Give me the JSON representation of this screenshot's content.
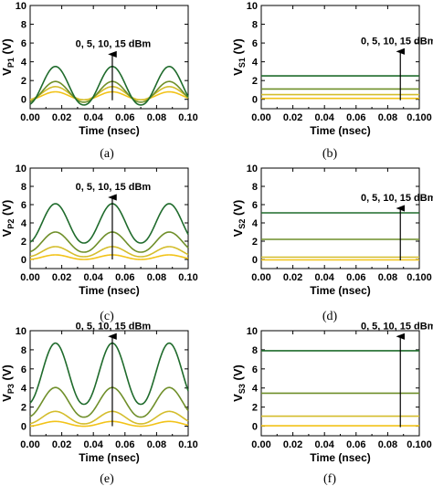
{
  "colors": [
    "#1f6b2c",
    "#6f8f2a",
    "#d4bd2c",
    "#f2c318"
  ],
  "chart_data": [
    {
      "id": "a",
      "type": "line",
      "caption": "(a)",
      "xlabel": "Time (nsec)",
      "ylabel_main": "V",
      "ylabel_sub": "P1",
      "ylabel_unit": " (V)",
      "xlim": [
        0,
        0.1
      ],
      "ylim": [
        -1,
        10
      ],
      "xticks": [
        "0.00",
        "0.02",
        "0.04",
        "0.06",
        "0.08",
        "0.10"
      ],
      "yticks": [
        "0",
        "2",
        "4",
        "6",
        "8",
        "10"
      ],
      "annotation": "0, 5, 10, 15 dBm",
      "arrow_x": 0.052,
      "arrow_y": [
        -0.1,
        4.8
      ],
      "period": 0.036,
      "peak_time": 0.016,
      "series": [
        {
          "base": -0.05,
          "amplitude": 0.85
        },
        {
          "base": -0.05,
          "amplitude": 1.4
        },
        {
          "base": -0.3,
          "amplitude": 2.2
        },
        {
          "base": -0.6,
          "amplitude": 4.1
        }
      ]
    },
    {
      "id": "b",
      "type": "line",
      "caption": "(b)",
      "xlabel": "Time (nsec)",
      "ylabel_main": "V",
      "ylabel_sub": "S1",
      "ylabel_unit": " (V)",
      "xlim": [
        0,
        0.1
      ],
      "ylim": [
        -1,
        10
      ],
      "xticks": [
        "0.00",
        "0.02",
        "0.04",
        "0.06",
        "0.08",
        "0.100"
      ],
      "yticks": [
        "0",
        "2",
        "4",
        "6",
        "8",
        "10"
      ],
      "annotation": "0, 5, 10, 15 dBm",
      "arrow_x": 0.088,
      "arrow_y": [
        -0.1,
        5.1
      ],
      "series": [
        {
          "level": 0.1
        },
        {
          "level": 0.5
        },
        {
          "level": 1.1
        },
        {
          "level": 2.5
        }
      ]
    },
    {
      "id": "c",
      "type": "line",
      "caption": "(c)",
      "xlabel": "Time (nsec)",
      "ylabel_main": "V",
      "ylabel_sub": "P2",
      "ylabel_unit": " (V)",
      "xlim": [
        0,
        0.1
      ],
      "ylim": [
        -1,
        10
      ],
      "xticks": [
        "0.00",
        "0.02",
        "0.04",
        "0.06",
        "0.08",
        "0.10"
      ],
      "yticks": [
        "0",
        "2",
        "4",
        "6",
        "8",
        "10"
      ],
      "annotation": "0, 5, 10, 15 dBm",
      "arrow_x": 0.052,
      "arrow_y": [
        0,
        6.8
      ],
      "period": 0.036,
      "peak_time": 0.016,
      "series": [
        {
          "base": 0.0,
          "amplitude": 0.5
        },
        {
          "base": 0.3,
          "amplitude": 1.1
        },
        {
          "base": 0.8,
          "amplitude": 2.2
        },
        {
          "base": 1.8,
          "amplitude": 4.3
        }
      ]
    },
    {
      "id": "d",
      "type": "line",
      "caption": "(d)",
      "xlabel": "Time (nsec)",
      "ylabel_main": "V",
      "ylabel_sub": "S2",
      "ylabel_unit": " (V)",
      "xlim": [
        0,
        0.1
      ],
      "ylim": [
        -1,
        10
      ],
      "xticks": [
        "0.00",
        "0.02",
        "0.04",
        "0.06",
        "0.08",
        "0.100"
      ],
      "yticks": [
        "0",
        "2",
        "4",
        "6",
        "8",
        "10"
      ],
      "annotation": "0, 5, 10, 15 dBm",
      "arrow_x": 0.088,
      "arrow_y": [
        -0.1,
        5.6
      ],
      "series": [
        {
          "level": -0.05
        },
        {
          "level": 0.25
        },
        {
          "level": 2.2
        },
        {
          "level": 5.1
        }
      ]
    },
    {
      "id": "e",
      "type": "line",
      "caption": "(e)",
      "xlabel": "Time (nsec)",
      "ylabel_main": "V",
      "ylabel_sub": "P3",
      "ylabel_unit": " (V)",
      "xlim": [
        0,
        0.1
      ],
      "ylim": [
        -1,
        10
      ],
      "xticks": [
        "0.00",
        "0.02",
        "0.04",
        "0.06",
        "0.08",
        "0.10"
      ],
      "yticks": [
        "0",
        "2",
        "4",
        "6",
        "8",
        "10"
      ],
      "annotation": "0, 5, 10, 15 dBm",
      "arrow_x": 0.052,
      "arrow_y": [
        0,
        9.4
      ],
      "period": 0.036,
      "peak_time": 0.016,
      "series": [
        {
          "base": 0.0,
          "amplitude": 0.5
        },
        {
          "base": 0.25,
          "amplitude": 1.3
        },
        {
          "base": 0.95,
          "amplitude": 3.1
        },
        {
          "base": 2.3,
          "amplitude": 6.4
        }
      ]
    },
    {
      "id": "f",
      "type": "line",
      "caption": "(f)",
      "xlabel": "Time (nsec)",
      "ylabel_main": "V",
      "ylabel_sub": "S3",
      "ylabel_unit": " (V)",
      "xlim": [
        0,
        0.1
      ],
      "ylim": [
        -1,
        10
      ],
      "xticks": [
        "0.00",
        "0.02",
        "0.04",
        "0.06",
        "0.08",
        "0.100"
      ],
      "yticks": [
        "0",
        "2",
        "4",
        "6",
        "8",
        "10"
      ],
      "annotation": "0, 5, 10, 15 dBm",
      "arrow_x": 0.088,
      "arrow_y": [
        -0.1,
        9.4
      ],
      "series": [
        {
          "level": 0.05
        },
        {
          "level": 1.05
        },
        {
          "level": 3.45
        },
        {
          "level": 7.9
        }
      ]
    }
  ]
}
